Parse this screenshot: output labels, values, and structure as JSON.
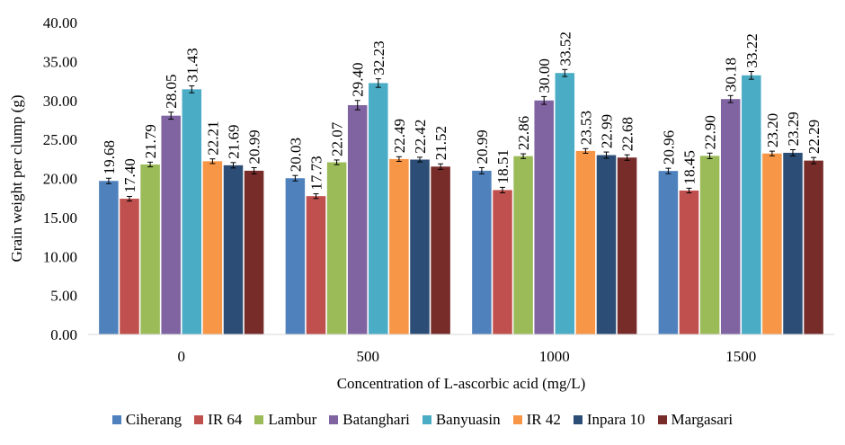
{
  "chart_data": {
    "type": "bar",
    "title": "",
    "xlabel": "Concentration of L-ascorbic acid (mg/L)",
    "ylabel": "Grain weight per clump (g)",
    "ylim": [
      0,
      40
    ],
    "yticks": [
      "0.00",
      "5.00",
      "10.00",
      "15.00",
      "20.00",
      "25.00",
      "30.00",
      "35.00",
      "40.00"
    ],
    "grid": false,
    "legend_position": "bottom",
    "error_bars": true,
    "categories": [
      "0",
      "500",
      "1000",
      "1500"
    ],
    "series": [
      {
        "name": "Ciherang",
        "color": "#4F81BD",
        "values": [
          19.68,
          20.03,
          20.99,
          20.96
        ],
        "labels": [
          "19.68",
          "20.03",
          "20.99",
          "20.96"
        ],
        "errors": [
          0.35,
          0.35,
          0.4,
          0.35
        ]
      },
      {
        "name": "IR 64",
        "color": "#C0504D",
        "values": [
          17.4,
          17.73,
          18.51,
          18.45
        ],
        "labels": [
          "17.40",
          "17.73",
          "18.51",
          "18.45"
        ],
        "errors": [
          0.3,
          0.3,
          0.35,
          0.3
        ]
      },
      {
        "name": "Lambur",
        "color": "#9BBB59",
        "values": [
          21.79,
          22.07,
          22.86,
          22.9
        ],
        "labels": [
          "21.79",
          "22.07",
          "22.86",
          "22.90"
        ],
        "errors": [
          0.3,
          0.3,
          0.3,
          0.35
        ]
      },
      {
        "name": "Batanghari",
        "color": "#8064A2",
        "values": [
          28.05,
          29.4,
          30.0,
          30.18
        ],
        "labels": [
          "28.05",
          "29.40",
          "30.00",
          "30.18"
        ],
        "errors": [
          0.45,
          0.6,
          0.5,
          0.45
        ]
      },
      {
        "name": "Banyuasin",
        "color": "#4BACC6",
        "values": [
          31.43,
          32.23,
          33.52,
          33.22
        ],
        "labels": [
          "31.43",
          "32.23",
          "33.52",
          "33.22"
        ],
        "errors": [
          0.45,
          0.55,
          0.45,
          0.5
        ]
      },
      {
        "name": "IR 42",
        "color": "#F79646",
        "values": [
          22.21,
          22.49,
          23.53,
          23.2
        ],
        "labels": [
          "22.21",
          "22.49",
          "23.53",
          "23.20"
        ],
        "errors": [
          0.3,
          0.3,
          0.3,
          0.3
        ]
      },
      {
        "name": "Inpara 10",
        "color": "#2C4D75",
        "values": [
          21.69,
          22.42,
          22.99,
          23.29
        ],
        "labels": [
          "21.69",
          "22.42",
          "22.99",
          "23.29"
        ],
        "errors": [
          0.35,
          0.3,
          0.4,
          0.4
        ]
      },
      {
        "name": "Margasari",
        "color": "#772C2A",
        "values": [
          20.99,
          21.52,
          22.68,
          22.29
        ],
        "labels": [
          "20.99",
          "21.52",
          "22.68",
          "22.29"
        ],
        "errors": [
          0.4,
          0.35,
          0.35,
          0.4
        ]
      }
    ]
  }
}
